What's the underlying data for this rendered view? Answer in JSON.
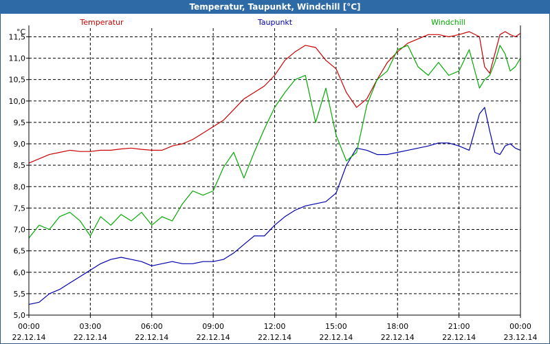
{
  "window": {
    "title": "Temperatur, Taupunkt, Windchill [°C]"
  },
  "colors": {
    "titlebar": "#2e6aa6",
    "temperatur": "#cc0000",
    "taupunkt": "#0000b0",
    "windchill": "#00aa00",
    "grid": "#000000"
  },
  "chart_data": {
    "type": "line",
    "title": "Temperatur, Taupunkt, Windchill [°C]",
    "ylabel": "°C",
    "xlabel": "",
    "ylim": [
      5.0,
      11.7
    ],
    "xlim": [
      0,
      24
    ],
    "grid": true,
    "legend_position": "top",
    "y_ticks": [
      "5,0",
      "5,5",
      "6,0",
      "6,5",
      "7,0",
      "7,5",
      "8,0",
      "8,5",
      "9,0",
      "9,5",
      "10,0",
      "10,5",
      "11,0",
      "11,5"
    ],
    "x_ticks": [
      {
        "time": "00:00",
        "date": "22.12.14"
      },
      {
        "time": "03:00",
        "date": "22.12.14"
      },
      {
        "time": "06:00",
        "date": "22.12.14"
      },
      {
        "time": "09:00",
        "date": "22.12.14"
      },
      {
        "time": "12:00",
        "date": "22.12.14"
      },
      {
        "time": "15:00",
        "date": "22.12.14"
      },
      {
        "time": "18:00",
        "date": "22.12.14"
      },
      {
        "time": "21:00",
        "date": "22.12.14"
      },
      {
        "time": "00:00",
        "date": "23.12.14"
      }
    ],
    "x_unit": "hours since 22.12.14 00:00",
    "series": [
      {
        "name": "Temperatur",
        "color": "#cc0000",
        "x": [
          0,
          0.5,
          1,
          1.5,
          2,
          2.5,
          3,
          3.5,
          4,
          4.5,
          5,
          5.5,
          6,
          6.5,
          7,
          7.5,
          8,
          8.5,
          9,
          9.5,
          10,
          10.5,
          11,
          11.5,
          12,
          12.5,
          13,
          13.5,
          14,
          14.5,
          15,
          15.5,
          16,
          16.5,
          17,
          17.5,
          18,
          18.5,
          19,
          19.5,
          20,
          20.5,
          21,
          21.5,
          22,
          22.25,
          22.5,
          22.75,
          23,
          23.25,
          23.5,
          23.75,
          24
        ],
        "values": [
          8.55,
          8.65,
          8.75,
          8.8,
          8.85,
          8.82,
          8.82,
          8.85,
          8.85,
          8.88,
          8.9,
          8.87,
          8.85,
          8.85,
          8.95,
          9.0,
          9.1,
          9.25,
          9.4,
          9.55,
          9.8,
          10.05,
          10.2,
          10.35,
          10.6,
          10.95,
          11.15,
          11.3,
          11.25,
          10.95,
          10.75,
          10.2,
          9.85,
          10.05,
          10.5,
          10.9,
          11.15,
          11.35,
          11.45,
          11.55,
          11.55,
          11.5,
          11.55,
          11.62,
          11.5,
          10.8,
          10.65,
          11.1,
          11.55,
          11.62,
          11.55,
          11.5,
          11.58
        ]
      },
      {
        "name": "Taupunkt",
        "color": "#0000b0",
        "x": [
          0,
          0.5,
          1,
          1.5,
          2,
          2.5,
          3,
          3.5,
          4,
          4.5,
          5,
          5.5,
          6,
          6.5,
          7,
          7.5,
          8,
          8.5,
          9,
          9.5,
          10,
          10.5,
          11,
          11.5,
          12,
          12.5,
          13,
          13.5,
          14,
          14.5,
          15,
          15.5,
          16,
          16.5,
          17,
          17.5,
          18,
          18.5,
          19,
          19.5,
          20,
          20.5,
          21,
          21.5,
          22,
          22.25,
          22.5,
          22.75,
          23,
          23.25,
          23.5,
          23.75,
          24
        ],
        "values": [
          5.25,
          5.3,
          5.5,
          5.6,
          5.75,
          5.9,
          6.05,
          6.2,
          6.3,
          6.35,
          6.3,
          6.25,
          6.15,
          6.2,
          6.25,
          6.2,
          6.2,
          6.25,
          6.25,
          6.3,
          6.45,
          6.65,
          6.85,
          6.85,
          7.1,
          7.3,
          7.45,
          7.55,
          7.6,
          7.65,
          7.85,
          8.5,
          8.9,
          8.85,
          8.75,
          8.75,
          8.8,
          8.85,
          8.9,
          8.95,
          9.02,
          9.02,
          8.95,
          8.85,
          9.7,
          9.85,
          9.3,
          8.8,
          8.75,
          8.95,
          9.0,
          8.9,
          8.85
        ]
      },
      {
        "name": "Windchill",
        "color": "#00aa00",
        "x": [
          0,
          0.5,
          1,
          1.5,
          2,
          2.5,
          3,
          3.5,
          4,
          4.5,
          5,
          5.5,
          6,
          6.5,
          7,
          7.5,
          8,
          8.5,
          9,
          9.5,
          10,
          10.5,
          11,
          11.5,
          12,
          12.5,
          13,
          13.5,
          14,
          14.5,
          15,
          15.5,
          16,
          16.5,
          17,
          17.5,
          18,
          18.5,
          19,
          19.5,
          20,
          20.5,
          21,
          21.5,
          22,
          22.25,
          22.5,
          22.75,
          23,
          23.25,
          23.5,
          23.75,
          24
        ],
        "values": [
          6.8,
          7.1,
          7.0,
          7.3,
          7.4,
          7.2,
          6.85,
          7.3,
          7.1,
          7.35,
          7.2,
          7.4,
          7.1,
          7.3,
          7.2,
          7.6,
          7.9,
          7.8,
          7.9,
          8.45,
          8.8,
          8.2,
          8.8,
          9.35,
          9.85,
          10.2,
          10.5,
          10.6,
          9.5,
          10.3,
          9.2,
          8.6,
          8.8,
          9.9,
          10.5,
          10.7,
          11.2,
          11.3,
          10.8,
          10.6,
          10.9,
          10.6,
          10.7,
          11.2,
          10.3,
          10.5,
          10.6,
          10.9,
          11.3,
          11.1,
          10.7,
          10.8,
          11.0
        ]
      }
    ]
  }
}
